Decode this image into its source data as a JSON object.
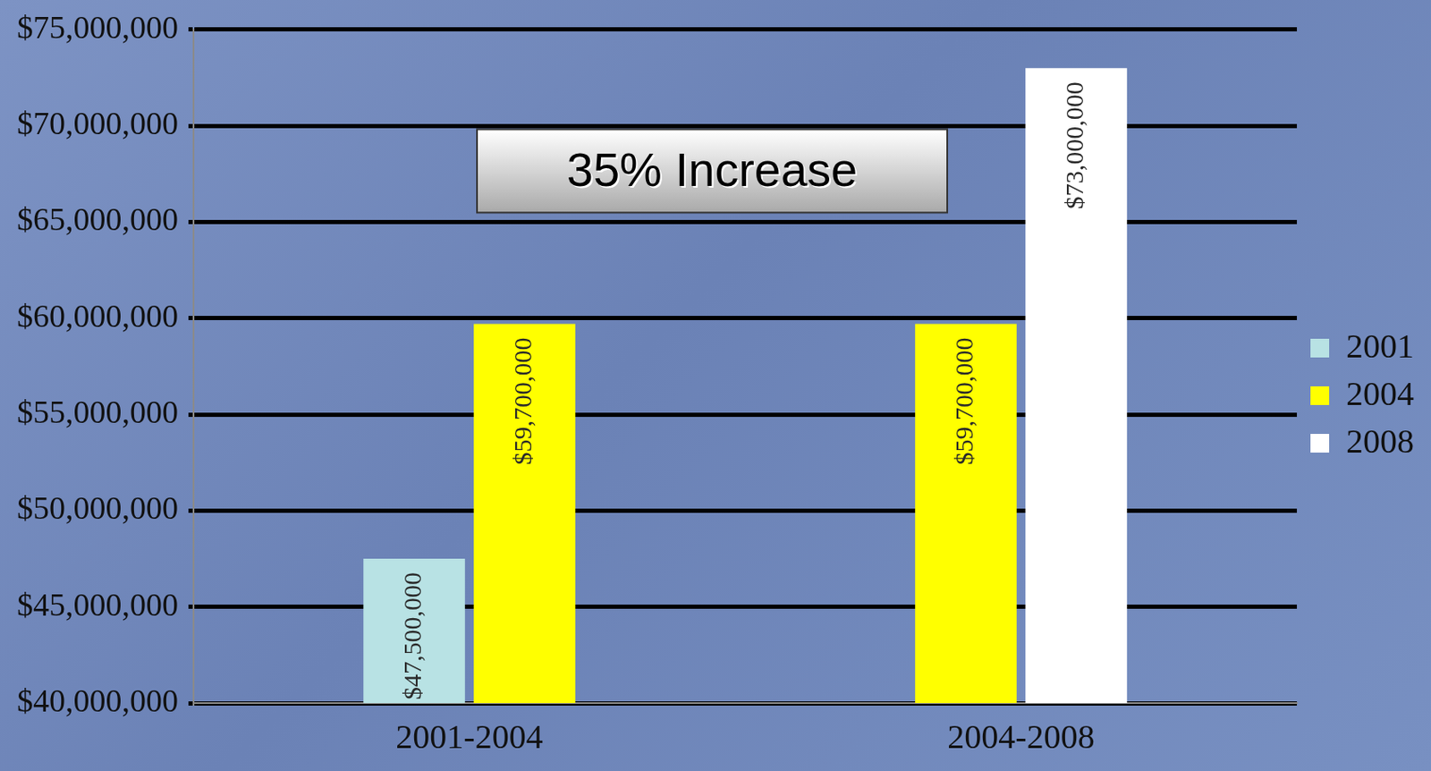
{
  "chart_data": {
    "type": "bar",
    "annotation": "35% Increase",
    "categories": [
      "2001-2004",
      "2004-2008"
    ],
    "series": [
      {
        "name": "2001",
        "color": "#b8e2e4",
        "values": [
          47500000,
          null
        ],
        "value_labels": [
          "$47,500,000",
          null
        ]
      },
      {
        "name": "2004",
        "color": "#ffff00",
        "values": [
          59700000,
          59700000
        ],
        "value_labels": [
          "$59,700,000",
          "$59,700,000"
        ]
      },
      {
        "name": "2008",
        "color": "#ffffff",
        "values": [
          null,
          73000000
        ],
        "value_labels": [
          null,
          "$73,000,000"
        ]
      }
    ],
    "ylim": [
      40000000,
      75000000
    ],
    "yticks": [
      {
        "value": 40000000,
        "label": "$40,000,000"
      },
      {
        "value": 45000000,
        "label": "$45,000,000"
      },
      {
        "value": 50000000,
        "label": "$50,000,000"
      },
      {
        "value": 55000000,
        "label": "$55,000,000"
      },
      {
        "value": 60000000,
        "label": "$60,000,000"
      },
      {
        "value": 65000000,
        "label": "$65,000,000"
      },
      {
        "value": 70000000,
        "label": "$70,000,000"
      },
      {
        "value": 75000000,
        "label": "$75,000,000"
      }
    ],
    "grid": true,
    "legend": "right",
    "data_labels": true
  }
}
